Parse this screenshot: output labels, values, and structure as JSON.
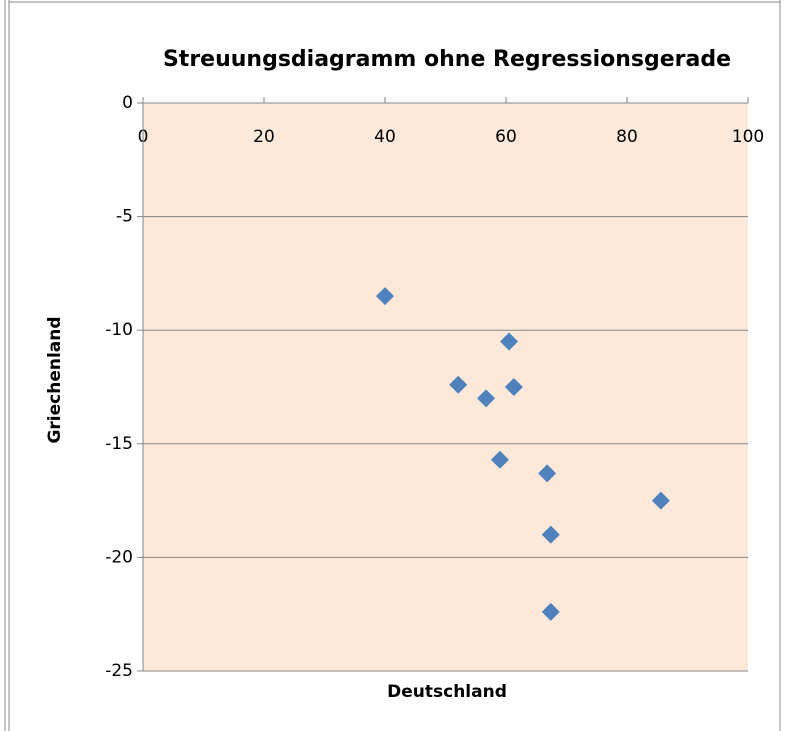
{
  "chart_data": {
    "type": "scatter",
    "title": "Streuungsdiagramm ohne Regressionsgerade",
    "x_label": "Deutschland",
    "y_label": "Griechenland",
    "series": [
      {
        "color": "#4f81bd",
        "x": [
          40,
          52.1,
          56.7,
          60.5,
          61.3,
          59.0,
          66.8,
          67.4,
          67.4,
          85.6
        ],
        "values": [
          -8.5,
          -12.4,
          -13.0,
          -10.5,
          -12.5,
          -15.7,
          -16.3,
          -19.0,
          -22.4,
          -17.5
        ]
      }
    ],
    "xlim": [
      0,
      100
    ],
    "xticks": [
      0,
      20,
      40,
      60,
      80,
      100
    ],
    "ylim": [
      -25,
      0
    ],
    "yticks": [
      0,
      -5,
      -10,
      -15,
      -20,
      -25
    ],
    "grid": true,
    "plot_background": "#fde9d9"
  }
}
